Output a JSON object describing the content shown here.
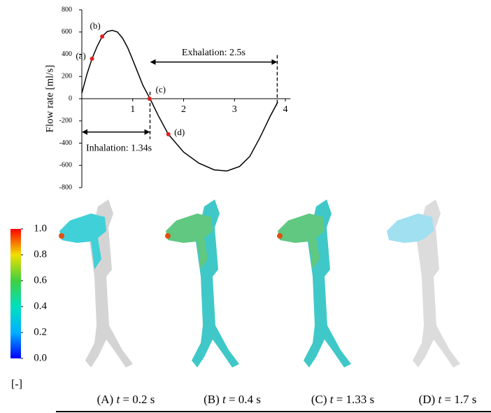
{
  "chart_data": {
    "type": "line",
    "ylabel": "Flow rate [ml/s]",
    "x": [
      0,
      0.1,
      0.2,
      0.3,
      0.4,
      0.5,
      0.6,
      0.7,
      0.8,
      0.9,
      1.0,
      1.1,
      1.2,
      1.34,
      1.5,
      1.7,
      2.0,
      2.3,
      2.6,
      2.85,
      3.1,
      3.3,
      3.5,
      3.7,
      3.85
    ],
    "series": [
      {
        "color": "#000000",
        "values": [
          50,
          220,
          360,
          470,
          560,
          605,
          615,
          600,
          545,
          460,
          350,
          235,
          120,
          0,
          -150,
          -320,
          -480,
          -580,
          -640,
          -650,
          -610,
          -520,
          -350,
          -160,
          -30
        ]
      }
    ],
    "points": {
      "color": "#e02020",
      "labels": [
        "(a)",
        "(b)",
        "(c)",
        "(d)"
      ],
      "x": [
        0.2,
        0.4,
        1.33,
        1.7
      ],
      "values": [
        360,
        560,
        0,
        -320
      ]
    },
    "annotations": [
      {
        "text": "Inhalation: 1.34s",
        "from": 0,
        "to": 1.34
      },
      {
        "text": "Exhalation: 2.5s",
        "from": 1.34,
        "to": 3.84
      }
    ],
    "xlim": [
      0,
      4.1
    ],
    "xticks": [
      1,
      2,
      3,
      4
    ],
    "ylim": [
      -800,
      800
    ],
    "yticks": [
      -800,
      -600,
      -400,
      -200,
      0,
      200,
      400,
      600,
      800
    ]
  },
  "colorbar": {
    "unit": "[-]",
    "ticks": [
      {
        "value": 0,
        "label": "0.0"
      },
      {
        "value": 0.2,
        "label": "0.2"
      },
      {
        "value": 0.4,
        "label": "0.4"
      },
      {
        "value": 0.6,
        "label": "0.6"
      },
      {
        "value": 0.8,
        "label": "0.8"
      },
      {
        "value": 1,
        "label": "1.0"
      }
    ],
    "lim": [
      0,
      1
    ]
  },
  "panels": [
    {
      "label": "(A)",
      "var": "t",
      "rest": "= 0.2 s"
    },
    {
      "label": "(B)",
      "var": "t",
      "rest": "= 0.4 s"
    },
    {
      "label": "(C)",
      "var": "t",
      "rest": "= 1.33 s"
    },
    {
      "label": "(D)",
      "var": "t",
      "rest": "= 1.7 s"
    }
  ]
}
